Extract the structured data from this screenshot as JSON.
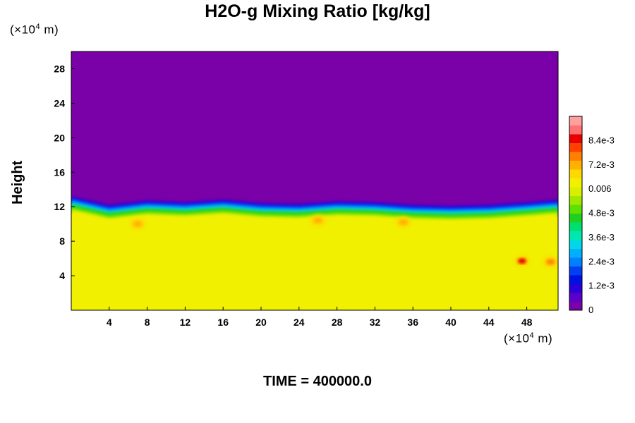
{
  "chart_data": {
    "type": "heatmap",
    "title": "H2O-g Mixing Ratio [kg/kg]",
    "xlabel": "",
    "ylabel": "Height",
    "x_unit_prefix": "(×10",
    "x_unit_exp": "4",
    "x_unit_suffix": " m)",
    "y_unit_prefix": "(×10",
    "y_unit_exp": "4",
    "y_unit_suffix": " m)",
    "xlim": [
      0,
      51.3
    ],
    "ylim": [
      0,
      30
    ],
    "xticks": [
      "4",
      "8",
      "12",
      "16",
      "20",
      "24",
      "28",
      "32",
      "36",
      "40",
      "44",
      "48"
    ],
    "xtick_values": [
      4,
      8,
      12,
      16,
      20,
      24,
      28,
      32,
      36,
      40,
      44,
      48
    ],
    "yticks": [
      "4",
      "8",
      "12",
      "16",
      "20",
      "24",
      "28"
    ],
    "ytick_values": [
      4,
      8,
      12,
      16,
      20,
      24,
      28
    ],
    "dry_layer_value": 0,
    "moist_layer_value": 0.0064,
    "transition_height": 11.5,
    "interface_profile": [
      {
        "x": 0,
        "y": 12.6
      },
      {
        "x": 4,
        "y": 11.6
      },
      {
        "x": 8,
        "y": 12.1
      },
      {
        "x": 12,
        "y": 11.9
      },
      {
        "x": 16,
        "y": 12.2
      },
      {
        "x": 20,
        "y": 11.8
      },
      {
        "x": 24,
        "y": 11.7
      },
      {
        "x": 28,
        "y": 12.0
      },
      {
        "x": 32,
        "y": 11.9
      },
      {
        "x": 36,
        "y": 11.6
      },
      {
        "x": 40,
        "y": 11.5
      },
      {
        "x": 44,
        "y": 11.6
      },
      {
        "x": 48,
        "y": 11.9
      },
      {
        "x": 51.3,
        "y": 12.2
      }
    ],
    "hotspots": [
      {
        "x": 47.5,
        "y": 5.7,
        "value": 0.0084
      },
      {
        "x": 50.5,
        "y": 5.6,
        "value": 0.0076
      },
      {
        "x": 7.0,
        "y": 10.0,
        "value": 0.0072
      },
      {
        "x": 35.0,
        "y": 10.2,
        "value": 0.0072
      },
      {
        "x": 26.0,
        "y": 10.4,
        "value": 0.007
      }
    ],
    "colorbar": {
      "min": 0,
      "max": 0.0096,
      "tick_labels": [
        "0",
        "1.2e-3",
        "2.4e-3",
        "3.6e-3",
        "4.8e-3",
        "0.006",
        "7.2e-3",
        "8.4e-3"
      ],
      "tick_values": [
        0,
        0.0012,
        0.0024,
        0.0036,
        0.0048,
        0.006,
        0.0072,
        0.0084
      ],
      "colors": [
        "#7a00a8",
        "#5a00c8",
        "#2a00d8",
        "#0010e0",
        "#0040f0",
        "#0080ff",
        "#00b0ff",
        "#00d8e8",
        "#00e8b0",
        "#00e070",
        "#20d020",
        "#60e000",
        "#a0e800",
        "#d8f000",
        "#f0f000",
        "#ffd800",
        "#ffb000",
        "#ff8000",
        "#ff4000",
        "#e80000",
        "#ff7070",
        "#ffa0a0"
      ]
    },
    "time_label": "TIME = 400000.0"
  }
}
